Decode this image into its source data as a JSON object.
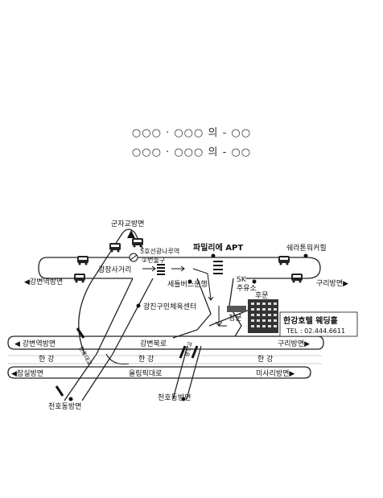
{
  "names": {
    "line1": "○○○ · ○○○ 의 - ○○",
    "line2": "○○○ · ○○○ 의 - ○○"
  },
  "map": {
    "labels": {
      "gunja": "군자교방면",
      "station": "5호선광나루역",
      "exit": "②번출구",
      "gwangjang": "광장사거리",
      "family_apt": "파밀리에 APT",
      "sheraton": "쉐라톤워커힐",
      "gangbyeon_station_top": "◀강변역방면",
      "guri_top": "구리방면▶",
      "seteul_bus": "세틀버스운행",
      "sk_line1": "SK",
      "sk_line2": "주유소",
      "gwangjin_sports": "광진구민체육센터",
      "back_gate": "후문",
      "main_gate": "정문",
      "hotel": "한강호텔 웨딩홀",
      "tel": "TEL : 02.444.6611",
      "gangbyeon_station_mid": "◀ 강변역방면",
      "gangbyeon_north": "강변북로",
      "guri_mid": "구리방면▶",
      "river1": "한 강",
      "river2": "한 강",
      "river3": "한 강",
      "jamsil": "◀잠실방면",
      "olympic": "올림픽대로",
      "misari": "미사리방면▶",
      "cheonho_bridge": "천호대교",
      "gwangjin_bridge": "광진교",
      "cheonho_left": "천호동방면",
      "cheonho_right": "천호동방면"
    }
  }
}
